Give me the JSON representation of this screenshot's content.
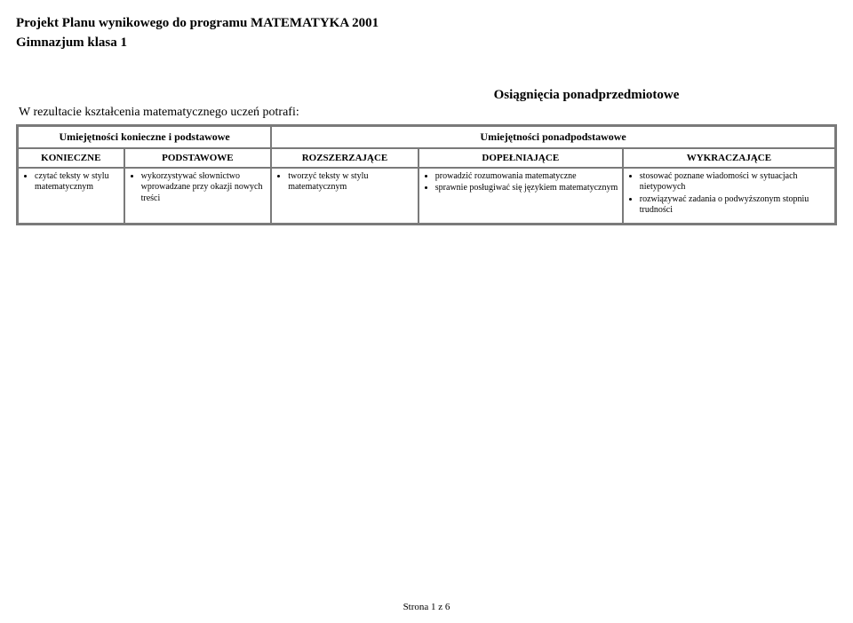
{
  "title": "Projekt Planu wynikowego do programu MATEMATYKA 2001",
  "subtitle": "Gimnazjum klasa 1",
  "lead_left": "W rezultacie kształcenia matematycznego uczeń potrafi:",
  "lead_right": "Osiągnięcia ponadprzedmiotowe",
  "header_left": "Umiejętności konieczne i podstawowe",
  "header_right": "Umiejętności ponadpodstawowe",
  "columns": {
    "c1": "KONIECZNE",
    "c2": "PODSTAWOWE",
    "c3": "ROZSZERZAJĄCE",
    "c4": "DOPEŁNIAJĄCE",
    "c5": "WYKRACZAJĄCE"
  },
  "cells": {
    "c1": [
      "czytać teksty w stylu matematycznym"
    ],
    "c2": [
      "wykorzystywać słownictwo wprowadzane przy okazji nowych treści"
    ],
    "c3": [
      "tworzyć teksty w stylu matematycznym"
    ],
    "c4": [
      "prowadzić rozumowania matematyczne",
      "sprawnie posługiwać się językiem matematycznym"
    ],
    "c5": [
      "stosować poznane wiadomości w sytuacjach nietypowych",
      "rozwiązywać zadania o podwyższonym stopniu trudności"
    ]
  },
  "footer": "Strona 1 z 6",
  "colors": {
    "text": "#000000",
    "border": "#7a7a7a",
    "background": "#ffffff"
  },
  "fonts": {
    "family": "Times New Roman",
    "title_size_pt": 12,
    "body_size_pt": 8
  }
}
